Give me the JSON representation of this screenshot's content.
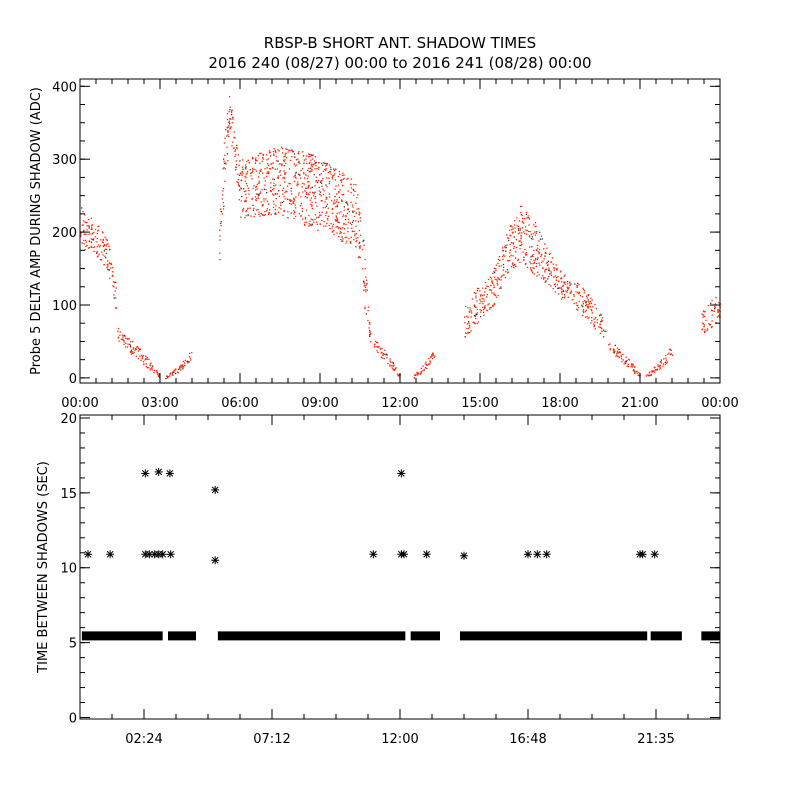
{
  "title": "RBSP-B SHORT ANT. SHADOW TIMES",
  "subtitle": "2016 240 (08/27) 00:00 to 2016 241 (08/28) 00:00",
  "colors": {
    "points": "#ff2200",
    "points_secondary": "#333333",
    "axes": "#000000",
    "markers": "#000000"
  },
  "chart_data": [
    {
      "type": "scatter",
      "ylabel": "Probe 5 DELTA AMP DURING SHADOW (ADC)",
      "xlabel": "",
      "xunit": "hours of day",
      "xlim": [
        0,
        24
      ],
      "ylim": [
        -7,
        410
      ],
      "yticks": [
        0,
        100,
        200,
        300,
        400
      ],
      "ytick_labels": [
        "0",
        "100",
        "200",
        "300",
        "400"
      ],
      "xticks": [
        0,
        3,
        6,
        9,
        12,
        15,
        18,
        21,
        24
      ],
      "xtick_labels": [
        "00:00",
        "03:00",
        "06:00",
        "09:00",
        "12:00",
        "15:00",
        "18:00",
        "21:00",
        "00:00"
      ],
      "grid": false,
      "envelopes": [
        [
          [
            0.0,
            180,
            240
          ],
          [
            0.5,
            170,
            215
          ],
          [
            1.0,
            150,
            200
          ],
          [
            1.2,
            120,
            160
          ],
          [
            1.35,
            90,
            130
          ]
        ],
        [
          [
            1.4,
            50,
            70
          ],
          [
            2.0,
            30,
            50
          ],
          [
            2.5,
            15,
            30
          ],
          [
            3.0,
            0,
            5
          ]
        ],
        [
          [
            3.2,
            0,
            3
          ],
          [
            3.7,
            8,
            18
          ],
          [
            4.2,
            25,
            40
          ]
        ],
        [
          [
            5.2,
            150,
            200
          ],
          [
            5.4,
            250,
            330
          ],
          [
            5.6,
            330,
            405
          ],
          [
            5.8,
            290,
            330
          ],
          [
            6.0,
            220,
            300
          ]
        ],
        [
          [
            6.0,
            220,
            300
          ],
          [
            7.5,
            225,
            320
          ],
          [
            9.0,
            200,
            305
          ],
          [
            10.3,
            180,
            270
          ],
          [
            10.5,
            150,
            250
          ]
        ],
        [
          [
            10.55,
            140,
            220
          ],
          [
            10.7,
            80,
            150
          ],
          [
            10.9,
            45,
            65
          ]
        ],
        [
          [
            11.0,
            40,
            55
          ],
          [
            11.5,
            20,
            35
          ],
          [
            12.0,
            0,
            5
          ]
        ],
        [
          [
            12.5,
            0,
            5
          ],
          [
            12.9,
            8,
            20
          ],
          [
            13.3,
            30,
            45
          ]
        ],
        [
          [
            14.4,
            55,
            100
          ],
          [
            15.0,
            80,
            130
          ],
          [
            15.5,
            100,
            150
          ],
          [
            16.0,
            140,
            200
          ],
          [
            16.5,
            160,
            240
          ],
          [
            17.0,
            140,
            220
          ],
          [
            17.5,
            130,
            180
          ],
          [
            18.0,
            110,
            150
          ],
          [
            19.0,
            80,
            120
          ],
          [
            19.5,
            60,
            90
          ],
          [
            19.7,
            50,
            70
          ]
        ],
        [
          [
            19.8,
            40,
            55
          ],
          [
            20.5,
            15,
            30
          ],
          [
            21.0,
            0,
            5
          ]
        ],
        [
          [
            21.2,
            0,
            4
          ],
          [
            21.7,
            10,
            22
          ],
          [
            22.2,
            30,
            45
          ]
        ],
        [
          [
            23.3,
            60,
            90
          ],
          [
            23.7,
            70,
            110
          ],
          [
            24.0,
            85,
            115
          ]
        ]
      ]
    },
    {
      "type": "scatter",
      "marker": "asterisk",
      "ylabel": "TIME BETWEEN SHADOWS (SEC)",
      "xlabel": "",
      "xunit": "hours of day",
      "xlim": [
        0,
        24
      ],
      "ylim": [
        -0.1,
        20.2
      ],
      "yticks": [
        0,
        5,
        10,
        15,
        20
      ],
      "ytick_labels": [
        "0",
        "5",
        "10",
        "15",
        "20"
      ],
      "xticks": [
        2.4,
        7.2,
        12.0,
        16.8,
        21.6
      ],
      "xtick_labels": [
        "02:24",
        "07:12",
        "12:00",
        "16:48",
        "21:35"
      ],
      "grid": false,
      "dense_band_value": 5.45,
      "dense_band_intervals": [
        [
          0.07,
          3.1
        ],
        [
          3.3,
          4.35
        ],
        [
          5.17,
          12.2
        ],
        [
          12.4,
          13.5
        ],
        [
          14.25,
          21.27
        ],
        [
          21.4,
          22.57
        ],
        [
          23.3,
          24.0
        ]
      ],
      "points": [
        [
          0.3,
          10.9
        ],
        [
          1.13,
          10.9
        ],
        [
          2.45,
          10.9
        ],
        [
          2.6,
          10.9
        ],
        [
          2.8,
          10.9
        ],
        [
          2.95,
          10.9
        ],
        [
          3.1,
          10.9
        ],
        [
          3.4,
          10.9
        ],
        [
          5.07,
          10.5
        ],
        [
          11.0,
          10.9
        ],
        [
          12.05,
          10.9
        ],
        [
          12.15,
          10.9
        ],
        [
          13.0,
          10.9
        ],
        [
          14.4,
          10.8
        ],
        [
          16.8,
          10.9
        ],
        [
          17.15,
          10.9
        ],
        [
          17.5,
          10.9
        ],
        [
          21.0,
          10.9
        ],
        [
          21.1,
          10.9
        ],
        [
          21.55,
          10.9
        ],
        [
          2.45,
          16.3
        ],
        [
          2.95,
          16.4
        ],
        [
          3.37,
          16.3
        ],
        [
          12.05,
          16.3
        ],
        [
          5.07,
          15.2
        ]
      ]
    }
  ]
}
